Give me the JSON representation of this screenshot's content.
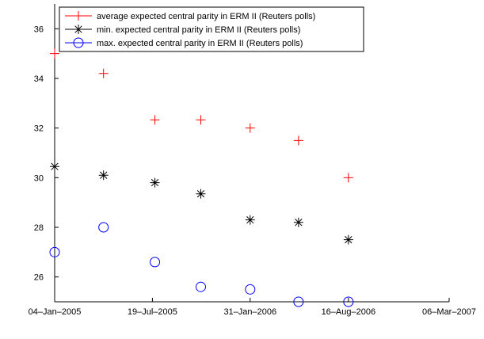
{
  "chart_data": {
    "type": "scatter",
    "title": "",
    "xlabel": "",
    "ylabel": "",
    "x_axis": {
      "type": "date",
      "range": [
        "2005-01-04",
        "2007-03-06"
      ],
      "ticks": [
        {
          "date": "2005-01-04",
          "label": "04–Jan–2005"
        },
        {
          "date": "2005-07-19",
          "label": "19–Jul–2005"
        },
        {
          "date": "2006-01-31",
          "label": "31–Jan–2006"
        },
        {
          "date": "2006-08-16",
          "label": "16–Aug–2006"
        },
        {
          "date": "2007-03-06",
          "label": "06–Mar–2007"
        }
      ]
    },
    "y_axis": {
      "range": [
        25,
        37
      ],
      "ticks": [
        26,
        28,
        30,
        32,
        34,
        36
      ]
    },
    "grid": false,
    "legend_placement": "top-left",
    "series": [
      {
        "name": "average expected central parity in ERM II (Reuters polls)",
        "marker": "plus",
        "color": "#ff0000",
        "points": [
          {
            "x": "2005-01-04",
            "y": 35.0
          },
          {
            "x": "2005-04-12",
            "y": 34.2
          },
          {
            "x": "2005-07-24",
            "y": 32.33
          },
          {
            "x": "2005-10-24",
            "y": 32.33
          },
          {
            "x": "2006-01-31",
            "y": 32.0
          },
          {
            "x": "2006-05-08",
            "y": 31.5
          },
          {
            "x": "2006-08-16",
            "y": 30.0
          }
        ]
      },
      {
        "name": "min. expected central parity in ERM II (Reuters polls)",
        "marker": "asterisk",
        "color": "#000000",
        "points": [
          {
            "x": "2005-01-04",
            "y": 30.45
          },
          {
            "x": "2005-04-12",
            "y": 30.1
          },
          {
            "x": "2005-07-24",
            "y": 29.8
          },
          {
            "x": "2005-10-24",
            "y": 29.35
          },
          {
            "x": "2006-01-31",
            "y": 28.3
          },
          {
            "x": "2006-05-08",
            "y": 28.2
          },
          {
            "x": "2006-08-16",
            "y": 27.5
          }
        ]
      },
      {
        "name": "max. expected central parity in ERM II (Reuters polls)",
        "marker": "circle",
        "color": "#0000ff",
        "points": [
          {
            "x": "2005-01-04",
            "y": 27.0
          },
          {
            "x": "2005-04-12",
            "y": 28.0
          },
          {
            "x": "2005-07-24",
            "y": 26.6
          },
          {
            "x": "2005-10-24",
            "y": 25.6
          },
          {
            "x": "2006-01-31",
            "y": 25.5
          },
          {
            "x": "2006-05-08",
            "y": 25.0
          },
          {
            "x": "2006-08-16",
            "y": 25.0
          }
        ]
      }
    ]
  }
}
